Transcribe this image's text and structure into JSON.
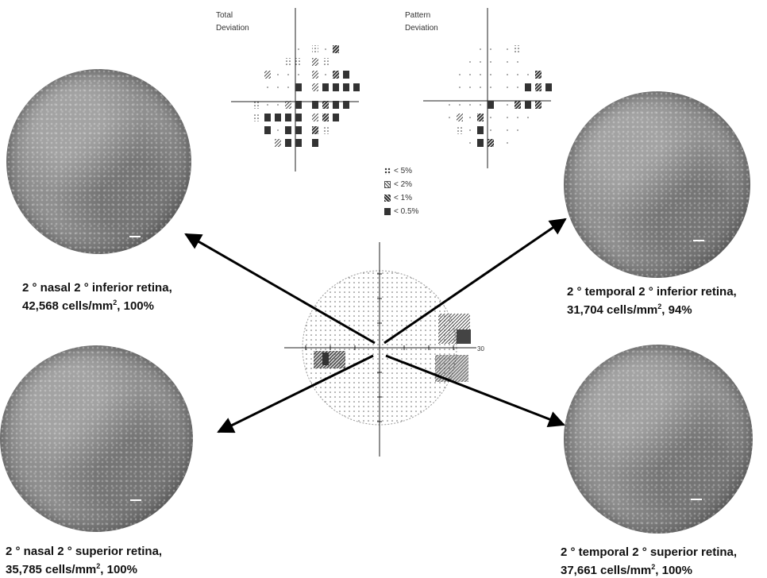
{
  "panels": {
    "top_left": {
      "line1": "2 ° nasal 2 ° inferior retina,",
      "line2_value": "42,568 cells/mm",
      "line2_sup": "2",
      "line2_tail": ", 100%"
    },
    "top_right": {
      "line1": "2 ° temporal 2 ° inferior retina,",
      "line2_value": "31,704 cells/mm",
      "line2_sup": "2",
      "line2_tail": ", 94%"
    },
    "bottom_left": {
      "line1": "2 ° nasal 2 ° superior retina,",
      "line2_value": "35,785 cells/mm",
      "line2_sup": "2",
      "line2_tail": ", 100%"
    },
    "bottom_right": {
      "line1": "2 ° temporal 2 ° superior retina,",
      "line2_value": "37,661 cells/mm",
      "line2_sup": "2",
      "line2_tail": ", 100%"
    }
  },
  "total_deviation": {
    "line1": "Total",
    "line2": "Deviation"
  },
  "pattern_deviation": {
    "line1": "Pattern",
    "line2": "Deviation"
  },
  "legend": [
    {
      "symbol": "p5",
      "label": "< 5%"
    },
    {
      "symbol": "p2",
      "label": "< 2%"
    },
    {
      "symbol": "p1",
      "label": "< 1%"
    },
    {
      "symbol": "p05",
      "label": "< 0.5%"
    }
  ],
  "visual_field": {
    "axis_label": "30"
  },
  "colors": {
    "disc": "#8a8a8a",
    "arrow": "#000000",
    "symbol_dark": "#333333"
  }
}
